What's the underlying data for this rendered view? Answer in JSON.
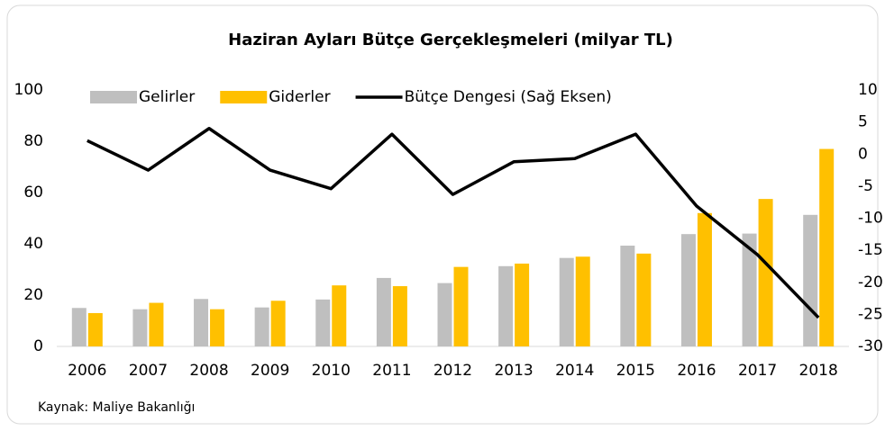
{
  "chart_data": {
    "type": "bar_line",
    "title": "Haziran Ayları Bütçe Gerçekleşmeleri (milyar TL)",
    "source": "Kaynak: Maliye Bakanlığı",
    "categories": [
      "2006",
      "2007",
      "2008",
      "2009",
      "2010",
      "2011",
      "2012",
      "2013",
      "2014",
      "2015",
      "2016",
      "2017",
      "2018"
    ],
    "series": [
      {
        "name": "Gelirler",
        "color": "#bfbfbf",
        "type": "bar",
        "values": [
          15,
          14.5,
          18.5,
          15.2,
          18.3,
          26.7,
          24.7,
          31.3,
          34.5,
          39.3,
          43.8,
          44,
          51.3
        ]
      },
      {
        "name": "Giderler",
        "color": "#ffc000",
        "type": "bar",
        "values": [
          13,
          17,
          14.5,
          17.8,
          23.8,
          23.5,
          31,
          32.3,
          35,
          36.2,
          52,
          57.5,
          77
        ]
      },
      {
        "name": "Bütçe Dengesi (Sağ Eksen)",
        "color": "#000000",
        "type": "line",
        "axis": "y2",
        "values": [
          2.1,
          -2.5,
          4.0,
          -2.5,
          -5.4,
          3.1,
          -6.3,
          -1.2,
          -0.7,
          3.1,
          -8.1,
          -15.7,
          -25.5
        ]
      }
    ],
    "ylim": [
      0,
      100
    ],
    "yticks": [
      0,
      20,
      40,
      60,
      80,
      100
    ],
    "y2lim": [
      -30,
      10
    ],
    "y2ticks": [
      -30,
      -25,
      -20,
      -15,
      -10,
      -5,
      0,
      5,
      10
    ],
    "legend": "top",
    "grid": false
  }
}
